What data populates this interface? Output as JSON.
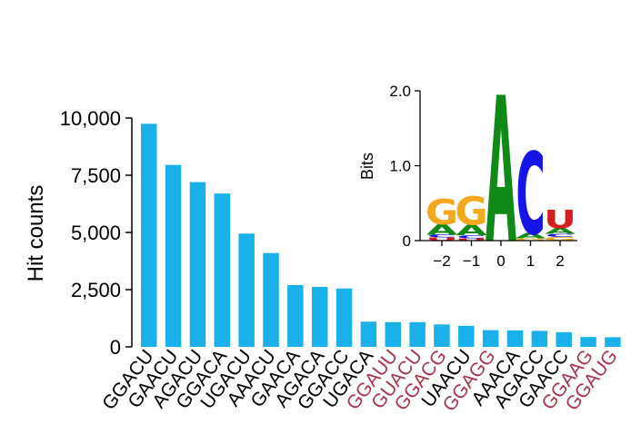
{
  "chart_data": [
    {
      "type": "bar",
      "title": "",
      "xlabel": "",
      "ylabel": "Hit counts",
      "ylim": [
        0,
        10000
      ],
      "yticks": [
        0,
        2500,
        5000,
        7500,
        10000
      ],
      "ytick_labels": [
        "0",
        "2,500",
        "5,000",
        "7,500",
        "10,000"
      ],
      "bar_color": "#1ab0ea",
      "highlight_label_color": "#a6364a",
      "default_label_color": "#000000",
      "grid": false,
      "categories": [
        "GGACU",
        "GAACU",
        "AGACU",
        "GGACA",
        "UGACU",
        "AAACU",
        "GAACA",
        "AGACA",
        "GGACC",
        "UGACA",
        "GGAUU",
        "GUACU",
        "GGACG",
        "UAACU",
        "GGAGG",
        "AAACA",
        "AGACC",
        "GAACC",
        "GGAAG",
        "GGAUG"
      ],
      "values": [
        9750,
        7950,
        7200,
        6700,
        4950,
        4100,
        2700,
        2620,
        2550,
        1100,
        1080,
        1080,
        980,
        920,
        730,
        720,
        700,
        640,
        430,
        420
      ],
      "highlighted": [
        false,
        false,
        false,
        false,
        false,
        false,
        false,
        false,
        false,
        false,
        true,
        true,
        true,
        false,
        true,
        false,
        false,
        false,
        true,
        true
      ]
    },
    {
      "type": "sequence-logo",
      "title": "",
      "xlabel": "",
      "ylabel": "Bits",
      "ylim": [
        0,
        2.0
      ],
      "yticks": [
        0,
        1.0,
        2.0
      ],
      "ytick_labels": [
        "0",
        "1.0",
        "2.0"
      ],
      "xticks": [
        -2,
        -1,
        0,
        1,
        2
      ],
      "xtick_labels": [
        "−2",
        "−1",
        "0",
        "1",
        "2"
      ],
      "letter_colors": {
        "A": "#0f8a17",
        "C": "#1515e6",
        "G": "#f4a81c",
        "U": "#d61e1e"
      },
      "positions": [
        {
          "pos": -2,
          "stack": [
            {
              "letter": "U",
              "bits": 0.04
            },
            {
              "letter": "C",
              "bits": 0.04
            },
            {
              "letter": "A",
              "bits": 0.14
            },
            {
              "letter": "G",
              "bits": 0.34
            }
          ]
        },
        {
          "pos": -1,
          "stack": [
            {
              "letter": "U",
              "bits": 0.03
            },
            {
              "letter": "C",
              "bits": 0.04
            },
            {
              "letter": "A",
              "bits": 0.14
            },
            {
              "letter": "G",
              "bits": 0.38
            }
          ]
        },
        {
          "pos": 0,
          "stack": [
            {
              "letter": "A",
              "bits": 1.95
            }
          ]
        },
        {
          "pos": 1,
          "stack": [
            {
              "letter": "G",
              "bits": 0.03
            },
            {
              "letter": "A",
              "bits": 0.07
            },
            {
              "letter": "C",
              "bits": 1.1
            }
          ]
        },
        {
          "pos": 2,
          "stack": [
            {
              "letter": "G",
              "bits": 0.05
            },
            {
              "letter": "C",
              "bits": 0.04
            },
            {
              "letter": "A",
              "bits": 0.08
            },
            {
              "letter": "U",
              "bits": 0.24
            }
          ]
        }
      ]
    }
  ]
}
